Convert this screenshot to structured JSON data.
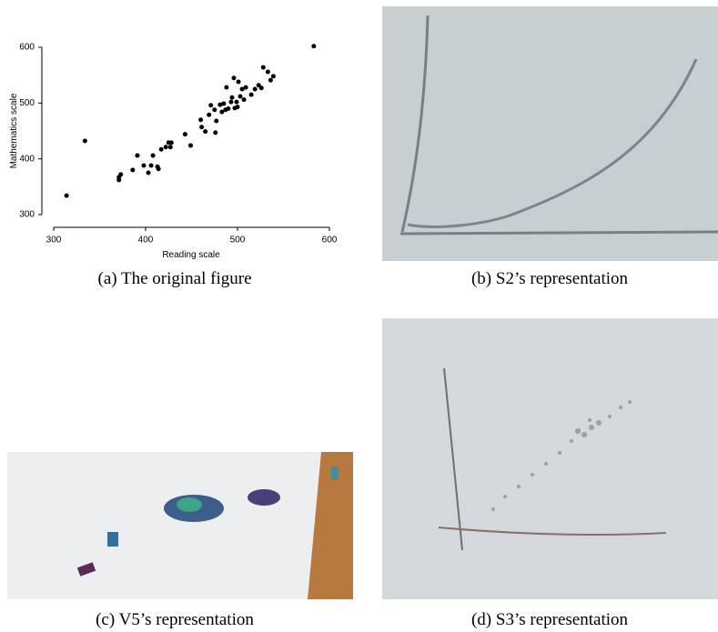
{
  "chart_data": {
    "type": "scatter",
    "xlabel": "Reading scale",
    "ylabel": "Mathematics scale",
    "x": [
      314,
      334,
      371,
      373,
      371,
      386,
      391,
      398,
      403,
      406,
      408,
      413,
      414,
      417,
      422,
      425,
      428,
      427,
      443,
      449,
      460,
      461,
      465,
      469,
      471,
      475,
      476,
      477,
      481,
      483,
      485,
      487,
      488,
      490,
      493,
      494,
      496,
      497,
      499,
      500,
      501,
      503,
      505,
      507,
      509,
      515,
      519,
      523,
      526,
      528,
      533,
      536,
      539,
      583
    ],
    "values": [
      334,
      432,
      367,
      372,
      362,
      380,
      406,
      388,
      375,
      388,
      406,
      386,
      382,
      417,
      421,
      429,
      429,
      421,
      444,
      424,
      470,
      457,
      449,
      479,
      496,
      488,
      447,
      468,
      497,
      484,
      499,
      488,
      528,
      490,
      502,
      510,
      545,
      491,
      502,
      493,
      538,
      512,
      525,
      506,
      528,
      515,
      525,
      532,
      527,
      564,
      556,
      541,
      548,
      602
    ],
    "color": "#000000",
    "xlim": [
      300,
      600
    ],
    "ylim": [
      300,
      600
    ],
    "xticks": [
      300,
      400,
      500,
      600
    ],
    "yticks": [
      300,
      400,
      500,
      600
    ]
  },
  "captions": [
    "(a) The original figure",
    "(b) S2’s representation",
    "(c) V5’s representation",
    "(d) S3’s representation"
  ]
}
